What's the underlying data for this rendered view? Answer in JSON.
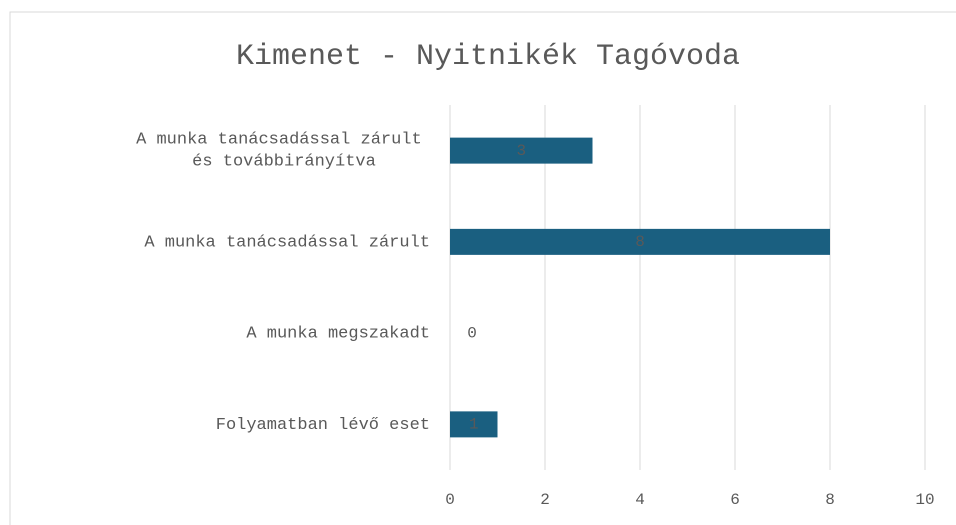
{
  "chart_data": {
    "type": "bar",
    "orientation": "horizontal",
    "title": "Kimenet - Nyitnikék Tagóvoda",
    "categories": [
      "A munka tanácsadással zárult és továbbirányítva",
      "A munka tanácsadással zárult",
      "A munka megszakadt",
      "Folyamatban lévő eset"
    ],
    "values": [
      3,
      8,
      0,
      1
    ],
    "color": "#1a5f80",
    "xlim": [
      0,
      10
    ],
    "xticks": [
      0,
      2,
      4,
      6,
      8,
      10
    ],
    "grid": true
  }
}
